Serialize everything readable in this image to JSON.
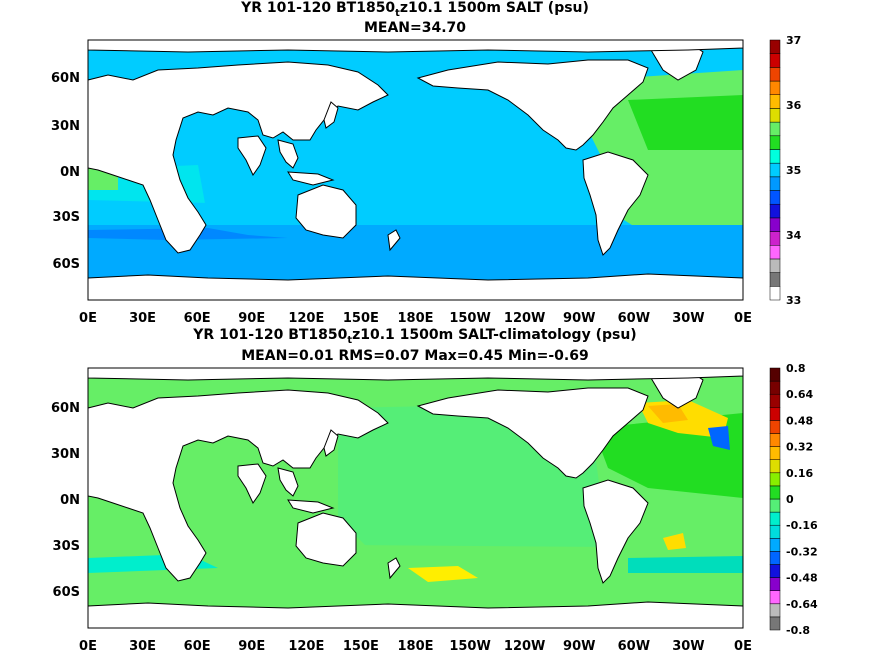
{
  "panels": [
    {
      "title_pre": "YR 101-120 BT1850",
      "title_sub": "t",
      "title_post": "z10.1 1500m SALT (psu)",
      "stats": "MEAN=34.70",
      "y_labels": [
        "60N",
        "30N",
        "0N",
        "30S",
        "60S"
      ],
      "x_labels": [
        "0E",
        "30E",
        "60E",
        "90E",
        "120E",
        "150E",
        "180E",
        "150W",
        "120W",
        "90W",
        "60W",
        "30W",
        "0E"
      ],
      "colorbar": {
        "labels": [
          "37",
          "36",
          "35",
          "34",
          "33"
        ],
        "colors": [
          "#ffffff",
          "#777777",
          "#bbbbbb",
          "#ff66ff",
          "#cc22cc",
          "#8800cc",
          "#1111dd",
          "#0055ff",
          "#0099ff",
          "#00ccff",
          "#00ffdd",
          "#22dd22",
          "#66ee66",
          "#dddd00",
          "#ffbb00",
          "#ff8800",
          "#ee4400",
          "#cc0000",
          "#990000"
        ]
      }
    },
    {
      "title_pre": "YR 101-120 BT1850",
      "title_sub": "t",
      "title_post": "z10.1 1500m SALT-climatology (psu)",
      "stats": "MEAN=0.01   RMS=0.07   Max=0.45   Min=-0.69",
      "y_labels": [
        "60N",
        "30N",
        "0N",
        "30S",
        "60S"
      ],
      "x_labels": [
        "0E",
        "30E",
        "60E",
        "90E",
        "120E",
        "150E",
        "180E",
        "150W",
        "120W",
        "90W",
        "60W",
        "30W",
        "0E"
      ],
      "colorbar": {
        "labels": [
          "0.8",
          "0.64",
          "0.48",
          "0.32",
          "0.16",
          "0",
          "-0.16",
          "-0.32",
          "-0.48",
          "-0.64",
          "-0.8"
        ],
        "colors": [
          "#777777",
          "#bbbbbb",
          "#ff66ff",
          "#8800cc",
          "#1111dd",
          "#0066ff",
          "#00aaff",
          "#00dddd",
          "#00eecc",
          "#55ee77",
          "#22dd22",
          "#88ee00",
          "#dddd00",
          "#ffbb00",
          "#ff8800",
          "#ee4400",
          "#cc0000",
          "#990000",
          "#770000",
          "#550000"
        ]
      }
    }
  ]
}
